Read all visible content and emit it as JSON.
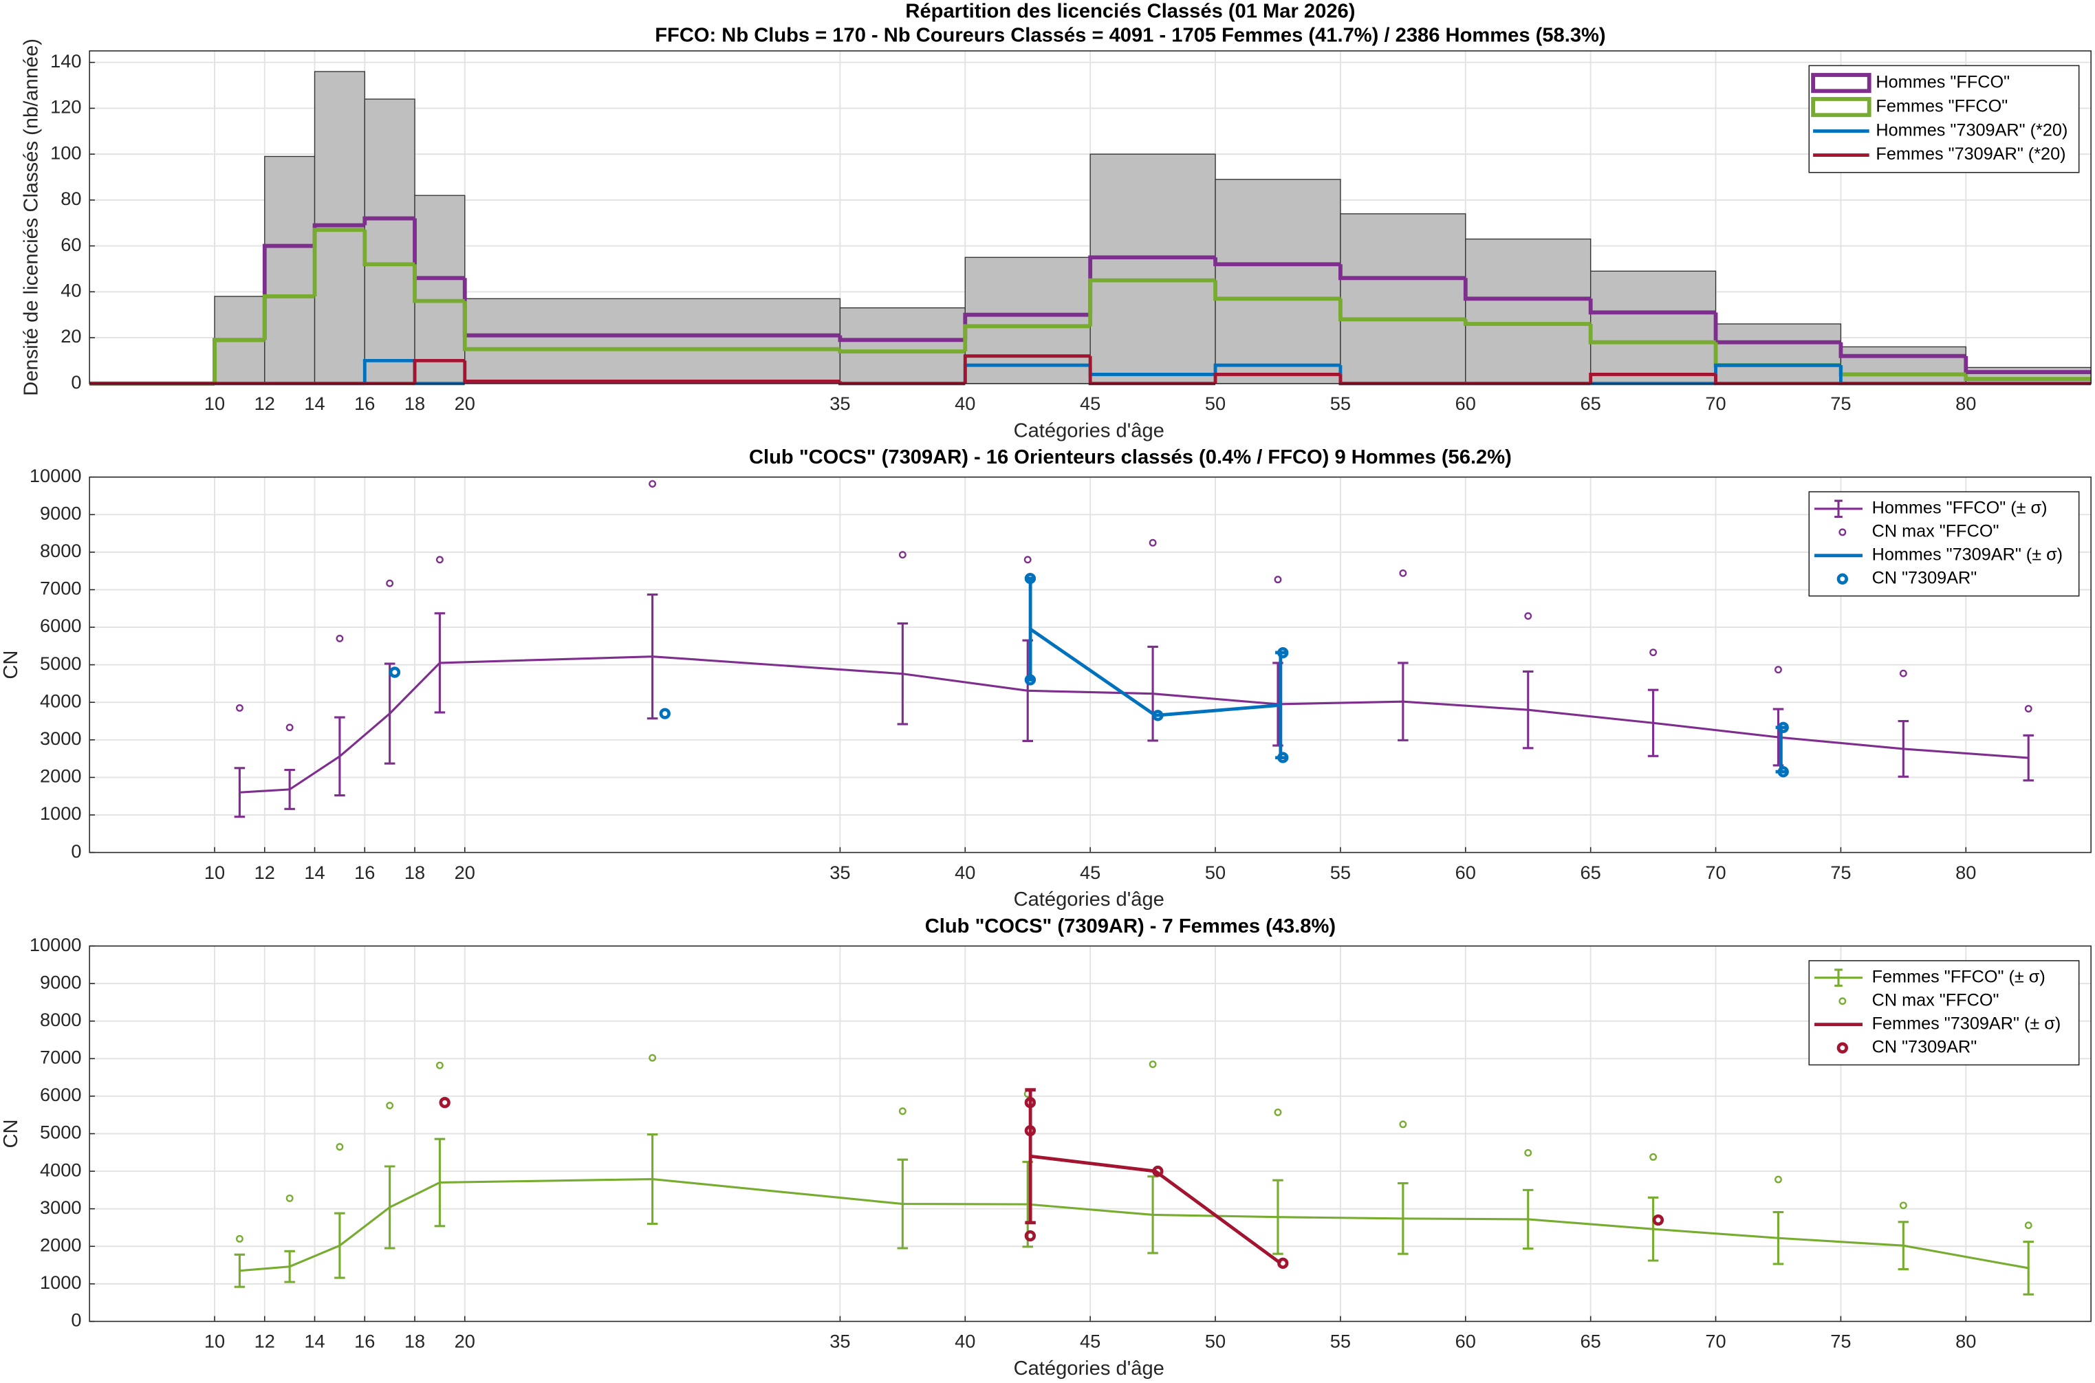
{
  "chart_data": [
    {
      "type": "histogram",
      "title": "Répartition des licenciés Classés (01 Mar 2026)",
      "subtitle": "FFCO: Nb Clubs = 170   -   Nb Coureurs Classés = 4091   -   1705 Femmes (41.7%) / 2386 Hommes (58.3%)",
      "xlabel": "Catégories d'âge",
      "ylabel": "Densité de licenciés Classés (nb/année)",
      "bins": [
        5,
        10,
        12,
        14,
        16,
        18,
        20,
        35,
        40,
        45,
        50,
        55,
        60,
        65,
        70,
        75,
        80,
        85
      ],
      "counts": [
        0,
        38,
        99,
        136,
        124,
        82,
        37,
        33,
        55,
        100,
        89,
        74,
        63,
        49,
        26,
        16,
        7
      ],
      "color": "#bfbfbf",
      "series": [
        {
          "name": "Hommes \"FFCO\"",
          "color": "#7e2f8e",
          "values": [
            0,
            19,
            60,
            69,
            72,
            46,
            21,
            19,
            30,
            55,
            52,
            46,
            37,
            31,
            18,
            12,
            5
          ]
        },
        {
          "name": "Femmes \"FFCO\"",
          "color": "#77ac30",
          "values": [
            0,
            19,
            38,
            67,
            52,
            36,
            15,
            14,
            25,
            45,
            37,
            28,
            26,
            18,
            8,
            4,
            2
          ]
        },
        {
          "name": "Hommes \"7309AR\" (*20)",
          "color": "#0072bd",
          "values": [
            0,
            0,
            0,
            0,
            10,
            0,
            1,
            0,
            8,
            4,
            8,
            0,
            0,
            0,
            8,
            0,
            0
          ]
        },
        {
          "name": "Femmes \"7309AR\" (*20)",
          "color": "#a2142f",
          "values": [
            0,
            0,
            0,
            0,
            0,
            10,
            1,
            0,
            12,
            0,
            4,
            0,
            0,
            4,
            0,
            0,
            0
          ]
        }
      ],
      "xlim": [
        5,
        85
      ],
      "ylim": [
        0,
        145
      ],
      "xticks": [
        10,
        12,
        14,
        16,
        18,
        20,
        35,
        40,
        45,
        50,
        55,
        60,
        65,
        70,
        75,
        80
      ],
      "yticks": [
        0,
        20,
        40,
        60,
        80,
        100,
        120,
        140
      ],
      "grid": true,
      "legend": "upper right"
    },
    {
      "type": "errorbar",
      "title": "Club \"COCS\" (7309AR)  -  16 Orienteurs classés (0.4% / FFCO)  9 Hommes (56.2%)",
      "xlabel": "Catégories d'âge",
      "ylabel": "CN",
      "x": [
        11,
        13,
        15,
        17,
        19,
        27.5,
        37.5,
        42.5,
        47.5,
        52.5,
        57.5,
        62.5,
        67.5,
        72.5,
        77.5,
        82.5
      ],
      "series": [
        {
          "name": "Hommes \"FFCO\" (± σ)",
          "color": "#7e2f8e",
          "kind": "errorbar",
          "values": [
            1600,
            1680,
            2560,
            3700,
            5050,
            5220,
            4760,
            4310,
            4230,
            3950,
            4020,
            3800,
            3450,
            3070,
            2760,
            2520
          ],
          "errors": [
            650,
            520,
            1040,
            1330,
            1320,
            1650,
            1340,
            1340,
            1250,
            1100,
            1030,
            1020,
            880,
            750,
            740,
            600
          ]
        },
        {
          "name": "CN max \"FFCO\"",
          "color": "#7e2f8e",
          "kind": "markers",
          "values": [
            3850,
            3330,
            5700,
            7170,
            7800,
            9820,
            7930,
            7800,
            8250,
            7270,
            7440,
            6300,
            5330,
            4870,
            4770,
            3830
          ]
        },
        {
          "name": "Hommes \"7309AR\" (± σ)",
          "color": "#0072bd",
          "kind": "errorbar",
          "values": [
            null,
            null,
            null,
            4800,
            null,
            3700,
            null,
            5950,
            3650,
            3925,
            null,
            null,
            null,
            2740,
            null,
            null
          ],
          "errors": [
            null,
            null,
            null,
            null,
            null,
            null,
            null,
            1350,
            null,
            1400,
            null,
            null,
            null,
            590,
            null,
            null
          ]
        },
        {
          "name": "CN \"7309AR\"",
          "color": "#0072bd",
          "kind": "markers",
          "x": [
            17.2,
            28,
            42.6,
            42.6,
            47.7,
            52.7,
            52.7,
            72.7,
            72.7
          ],
          "values": [
            4800,
            3700,
            7300,
            4600,
            3650,
            5320,
            2530,
            3330,
            2150
          ]
        }
      ],
      "xlim": [
        5,
        85
      ],
      "ylim": [
        0,
        10000
      ],
      "xticks": [
        10,
        12,
        14,
        16,
        18,
        20,
        35,
        40,
        45,
        50,
        55,
        60,
        65,
        70,
        75,
        80
      ],
      "yticks": [
        0,
        1000,
        2000,
        3000,
        4000,
        5000,
        6000,
        7000,
        8000,
        9000,
        10000
      ],
      "grid": true,
      "legend": "upper right"
    },
    {
      "type": "errorbar",
      "title": "Club \"COCS\" (7309AR)  -  7 Femmes (43.8%)",
      "xlabel": "Catégories d'âge",
      "ylabel": "CN",
      "x": [
        11,
        13,
        15,
        17,
        19,
        27.5,
        37.5,
        42.5,
        47.5,
        52.5,
        57.5,
        62.5,
        67.5,
        72.5,
        77.5,
        82.5
      ],
      "series": [
        {
          "name": "Femmes \"FFCO\" (± σ)",
          "color": "#77ac30",
          "kind": "errorbar",
          "values": [
            1350,
            1460,
            2020,
            3040,
            3700,
            3790,
            3130,
            3120,
            2840,
            2780,
            2740,
            2720,
            2460,
            2220,
            2020,
            1420
          ],
          "errors": [
            430,
            410,
            860,
            1090,
            1160,
            1190,
            1180,
            1130,
            1020,
            980,
            940,
            780,
            840,
            690,
            630,
            700
          ]
        },
        {
          "name": "CN max \"FFCO\"",
          "color": "#77ac30",
          "kind": "markers",
          "values": [
            2200,
            3280,
            4650,
            5750,
            6820,
            7020,
            5600,
            6060,
            6850,
            5570,
            5250,
            4490,
            4380,
            3780,
            3090,
            2560
          ]
        },
        {
          "name": "Femmes \"7309AR\" (± σ)",
          "color": "#a2142f",
          "kind": "errorbar",
          "values": [
            null,
            null,
            null,
            null,
            5830,
            null,
            null,
            4400,
            4000,
            1550,
            null,
            null,
            2700,
            null,
            null,
            null
          ],
          "errors": [
            null,
            null,
            null,
            null,
            null,
            null,
            null,
            1770,
            null,
            null,
            null,
            null,
            null,
            null,
            null,
            null
          ]
        },
        {
          "name": "CN \"7309AR\"",
          "color": "#a2142f",
          "kind": "markers",
          "x": [
            19.2,
            42.6,
            42.6,
            42.6,
            47.7,
            52.7,
            67.7
          ],
          "values": [
            5830,
            5830,
            5080,
            2280,
            4000,
            1550,
            2700
          ]
        }
      ],
      "xlim": [
        5,
        85
      ],
      "ylim": [
        0,
        10000
      ],
      "xticks": [
        10,
        12,
        14,
        16,
        18,
        20,
        35,
        40,
        45,
        50,
        55,
        60,
        65,
        70,
        75,
        80
      ],
      "yticks": [
        0,
        1000,
        2000,
        3000,
        4000,
        5000,
        6000,
        7000,
        8000,
        9000,
        10000
      ],
      "grid": true,
      "legend": "upper right"
    }
  ]
}
